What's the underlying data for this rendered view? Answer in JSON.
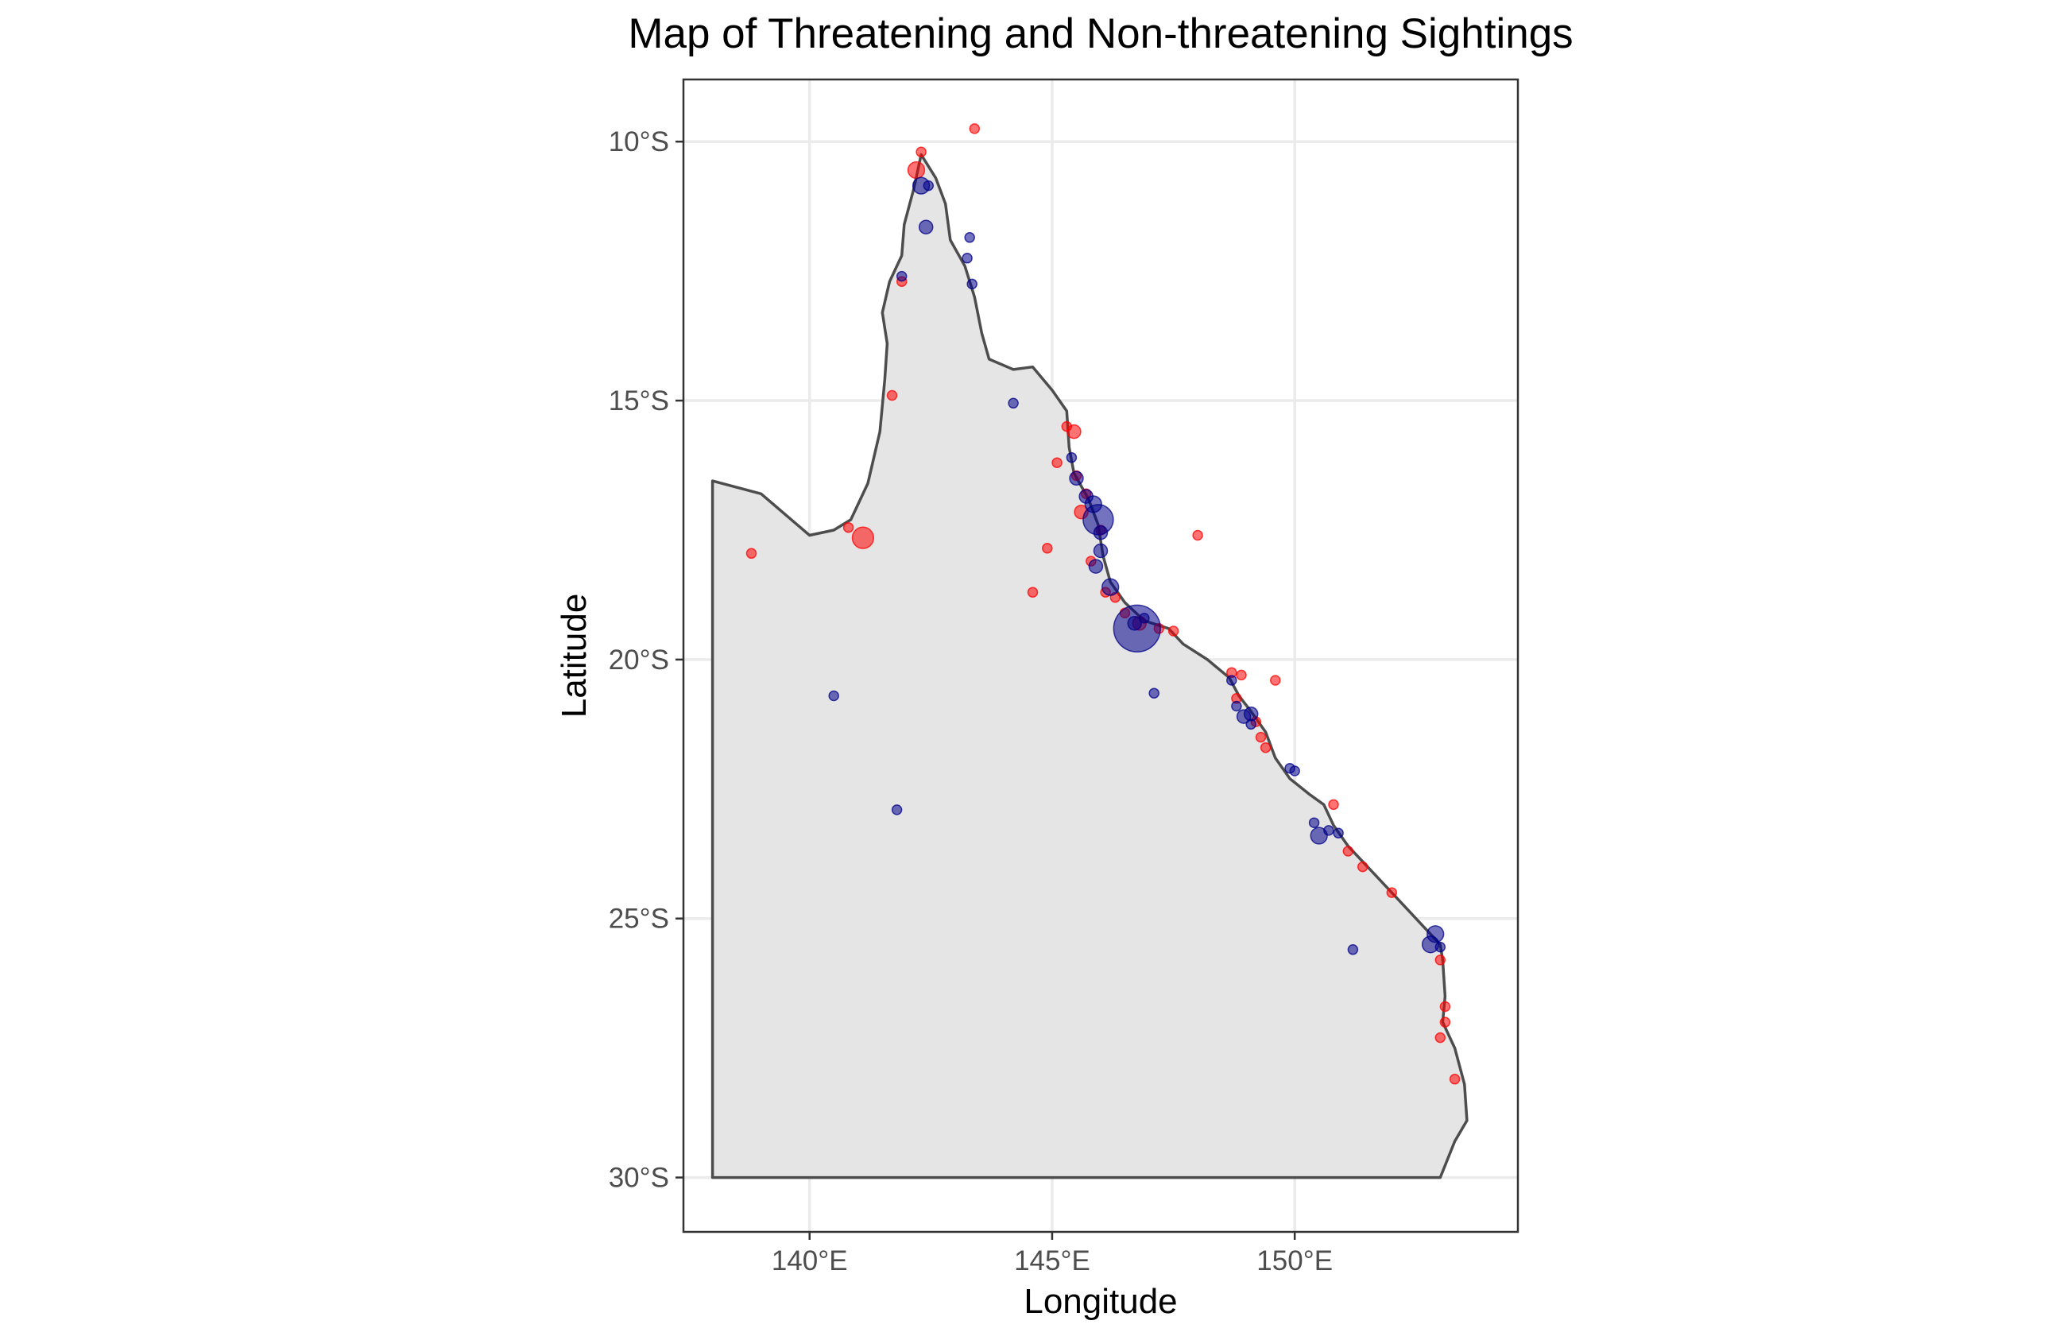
{
  "chart_data": {
    "type": "scatter",
    "title": "Map of Threatening and Non-threatening Sightings",
    "xlabel": "Longitude",
    "ylabel": "Latitude",
    "xlim": [
      137.4,
      154.6
    ],
    "ylim": [
      -31.05,
      -8.8
    ],
    "x_ticks": [
      {
        "value": 140,
        "label": "140°E"
      },
      {
        "value": 145,
        "label": "145°E"
      },
      {
        "value": 150,
        "label": "150°E"
      }
    ],
    "y_ticks": [
      {
        "value": -10,
        "label": "10°S"
      },
      {
        "value": -15,
        "label": "15°S"
      },
      {
        "value": -20,
        "label": "20°S"
      },
      {
        "value": -25,
        "label": "25°S"
      },
      {
        "value": -30,
        "label": "30°S"
      }
    ],
    "grid": true,
    "legend": "none",
    "colors": {
      "red": "#ff0000",
      "blue": "#00008b",
      "land": "#e5e5e5",
      "border": "#4d4d4d"
    },
    "series": [
      {
        "color": "#ff0000",
        "points": [
          [
            143.4,
            -9.75,
            1
          ],
          [
            142.3,
            -10.2,
            1
          ],
          [
            142.2,
            -10.55,
            3
          ],
          [
            141.9,
            -12.7,
            1
          ],
          [
            141.7,
            -14.9,
            1
          ],
          [
            141.1,
            -17.65,
            5
          ],
          [
            140.8,
            -17.45,
            1
          ],
          [
            138.8,
            -17.95,
            1
          ],
          [
            144.6,
            -18.7,
            1
          ],
          [
            144.9,
            -17.85,
            1
          ],
          [
            145.3,
            -15.5,
            1
          ],
          [
            145.45,
            -15.6,
            2
          ],
          [
            145.1,
            -16.2,
            1
          ],
          [
            145.5,
            -16.45,
            1
          ],
          [
            145.7,
            -16.8,
            1
          ],
          [
            145.6,
            -17.15,
            2
          ],
          [
            146.0,
            -17.5,
            1
          ],
          [
            145.8,
            -18.1,
            1
          ],
          [
            146.1,
            -18.7,
            1
          ],
          [
            146.3,
            -18.8,
            1
          ],
          [
            146.5,
            -19.1,
            1
          ],
          [
            146.8,
            -19.3,
            2
          ],
          [
            147.2,
            -19.4,
            1
          ],
          [
            147.5,
            -19.45,
            1
          ],
          [
            148.0,
            -17.6,
            1
          ],
          [
            148.7,
            -20.25,
            1
          ],
          [
            148.9,
            -20.3,
            1
          ],
          [
            149.6,
            -20.4,
            1
          ],
          [
            148.8,
            -20.75,
            1
          ],
          [
            149.2,
            -21.2,
            1
          ],
          [
            149.3,
            -21.5,
            1
          ],
          [
            149.4,
            -21.7,
            1
          ],
          [
            150.8,
            -22.8,
            1
          ],
          [
            151.1,
            -23.7,
            1
          ],
          [
            151.4,
            -24.0,
            1
          ],
          [
            152.0,
            -24.5,
            1
          ],
          [
            153.0,
            -25.8,
            1
          ],
          [
            153.1,
            -26.7,
            1
          ],
          [
            153.1,
            -27.0,
            1
          ],
          [
            153.0,
            -27.3,
            1
          ],
          [
            153.3,
            -28.1,
            1
          ]
        ]
      },
      {
        "color": "#00008b",
        "points": [
          [
            142.3,
            -10.85,
            3
          ],
          [
            142.45,
            -10.85,
            1
          ],
          [
            142.4,
            -11.65,
            2
          ],
          [
            143.3,
            -11.85,
            1
          ],
          [
            143.25,
            -12.25,
            1
          ],
          [
            143.35,
            -12.75,
            1
          ],
          [
            141.9,
            -12.6,
            1
          ],
          [
            144.2,
            -15.05,
            1
          ],
          [
            145.4,
            -16.1,
            1
          ],
          [
            145.5,
            -16.5,
            2
          ],
          [
            145.7,
            -16.85,
            2
          ],
          [
            145.85,
            -17.0,
            3
          ],
          [
            145.95,
            -17.3,
            10
          ],
          [
            146.0,
            -17.55,
            2
          ],
          [
            146.0,
            -17.9,
            2
          ],
          [
            145.9,
            -18.2,
            2
          ],
          [
            146.2,
            -18.6,
            3
          ],
          [
            146.7,
            -19.3,
            2
          ],
          [
            146.75,
            -19.4,
            24
          ],
          [
            146.9,
            -19.2,
            1
          ],
          [
            147.1,
            -20.65,
            1
          ],
          [
            140.5,
            -20.7,
            1
          ],
          [
            148.7,
            -20.4,
            1
          ],
          [
            148.8,
            -20.9,
            1
          ],
          [
            148.95,
            -21.1,
            2
          ],
          [
            149.1,
            -21.05,
            2
          ],
          [
            149.1,
            -21.25,
            1
          ],
          [
            149.9,
            -22.1,
            1
          ],
          [
            150.0,
            -22.15,
            1
          ],
          [
            150.4,
            -23.15,
            1
          ],
          [
            150.5,
            -23.4,
            3
          ],
          [
            150.7,
            -23.3,
            1
          ],
          [
            141.8,
            -22.9,
            1
          ],
          [
            151.2,
            -25.6,
            1
          ],
          [
            152.8,
            -25.5,
            3
          ],
          [
            152.9,
            -25.3,
            3
          ],
          [
            153.0,
            -25.55,
            1
          ],
          [
            150.9,
            -23.35,
            1
          ]
        ]
      }
    ]
  },
  "map": {
    "region_outline": [
      [
        138.0,
        -30.0
      ],
      [
        138.0,
        -16.55
      ],
      [
        139.0,
        -16.8
      ],
      [
        139.5,
        -17.2
      ],
      [
        140.0,
        -17.6
      ],
      [
        140.5,
        -17.5
      ],
      [
        140.85,
        -17.3
      ],
      [
        141.2,
        -16.6
      ],
      [
        141.45,
        -15.6
      ],
      [
        141.55,
        -14.6
      ],
      [
        141.6,
        -13.9
      ],
      [
        141.5,
        -13.3
      ],
      [
        141.65,
        -12.7
      ],
      [
        141.9,
        -12.2
      ],
      [
        141.95,
        -11.6
      ],
      [
        142.15,
        -10.9
      ],
      [
        142.3,
        -10.25
      ],
      [
        142.6,
        -10.7
      ],
      [
        142.8,
        -11.2
      ],
      [
        142.9,
        -11.9
      ],
      [
        143.2,
        -12.4
      ],
      [
        143.4,
        -13.0
      ],
      [
        143.55,
        -13.7
      ],
      [
        143.7,
        -14.2
      ],
      [
        144.2,
        -14.4
      ],
      [
        144.6,
        -14.35
      ],
      [
        145.0,
        -14.8
      ],
      [
        145.3,
        -15.2
      ],
      [
        145.35,
        -15.9
      ],
      [
        145.45,
        -16.4
      ],
      [
        145.75,
        -16.9
      ],
      [
        145.95,
        -17.4
      ],
      [
        146.05,
        -18.0
      ],
      [
        146.2,
        -18.5
      ],
      [
        146.5,
        -18.9
      ],
      [
        146.9,
        -19.25
      ],
      [
        147.4,
        -19.4
      ],
      [
        147.7,
        -19.7
      ],
      [
        148.2,
        -20.0
      ],
      [
        148.65,
        -20.35
      ],
      [
        148.85,
        -20.7
      ],
      [
        149.1,
        -21.0
      ],
      [
        149.4,
        -21.4
      ],
      [
        149.6,
        -21.9
      ],
      [
        149.9,
        -22.3
      ],
      [
        150.3,
        -22.6
      ],
      [
        150.6,
        -22.8
      ],
      [
        150.8,
        -23.2
      ],
      [
        151.1,
        -23.6
      ],
      [
        151.5,
        -24.0
      ],
      [
        152.0,
        -24.5
      ],
      [
        152.4,
        -24.9
      ],
      [
        152.7,
        -25.2
      ],
      [
        153.0,
        -25.5
      ],
      [
        153.05,
        -25.8
      ],
      [
        153.1,
        -26.5
      ],
      [
        153.05,
        -27.0
      ],
      [
        153.3,
        -27.5
      ],
      [
        153.5,
        -28.2
      ],
      [
        153.55,
        -28.9
      ],
      [
        153.3,
        -29.3
      ],
      [
        153.0,
        -30.0
      ],
      [
        145.0,
        -30.0
      ],
      [
        141.0,
        -30.0
      ],
      [
        138.0,
        -30.0
      ]
    ]
  }
}
